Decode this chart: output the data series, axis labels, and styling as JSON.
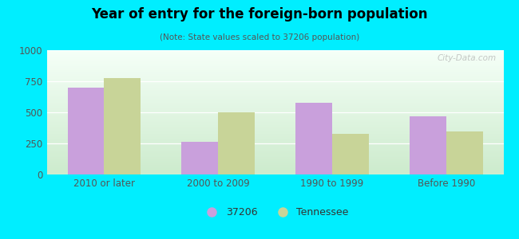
{
  "title": "Year of entry for the foreign-born population",
  "subtitle": "(Note: State values scaled to 37206 population)",
  "categories": [
    "2010 or later",
    "2000 to 2009",
    "1990 to 1999",
    "Before 1990"
  ],
  "series_37206": [
    700,
    265,
    575,
    465
  ],
  "series_tennessee": [
    775,
    500,
    325,
    345
  ],
  "color_37206": "#c9a0dc",
  "color_tennessee": "#c8d498",
  "ylim": [
    0,
    1000
  ],
  "yticks": [
    0,
    250,
    500,
    750,
    1000
  ],
  "background_outer": "#00eeff",
  "background_top": "#f5fff8",
  "background_bottom": "#c8e8c8",
  "legend_labels": [
    "37206",
    "Tennessee"
  ],
  "bar_width": 0.32,
  "watermark": "City-Data.com"
}
